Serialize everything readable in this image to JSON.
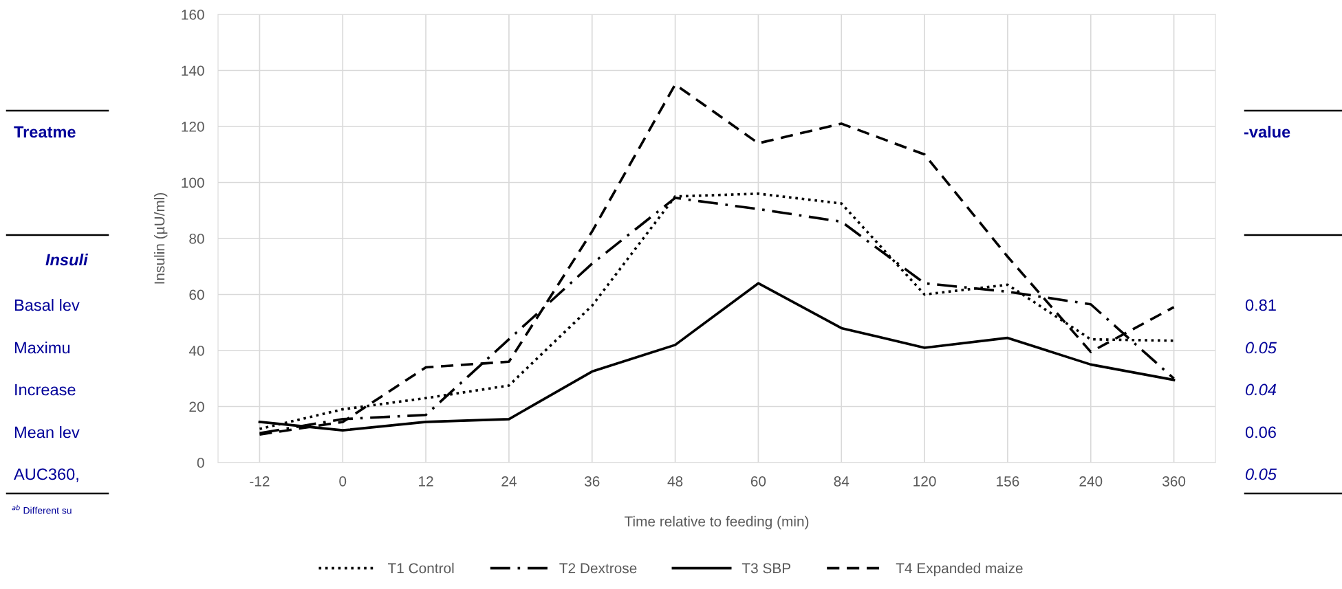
{
  "chart_data": {
    "type": "line",
    "xlabel": "Time relative to feeding (min)",
    "ylabel": "Insulin (µU/ml)",
    "categories": [
      "-12",
      "0",
      "12",
      "24",
      "36",
      "48",
      "60",
      "84",
      "120",
      "156",
      "240",
      "360"
    ],
    "ylim": [
      0,
      160
    ],
    "yticks": [
      0,
      20,
      40,
      60,
      80,
      100,
      120,
      140,
      160
    ],
    "grid": true,
    "legend": "bottom",
    "marker": "none",
    "series": [
      {
        "name": "T1 Control",
        "color": "#000000",
        "line_style": "dotted",
        "values": [
          12,
          19,
          23,
          27.5,
          56,
          95,
          96,
          92.5,
          60,
          63.5,
          44,
          43.5
        ]
      },
      {
        "name": "T2 Dextrose",
        "color": "#000000",
        "line_style": "dashdot",
        "values": [
          10.5,
          15.5,
          17,
          44,
          71,
          94.5,
          90.5,
          86,
          64,
          61,
          56.5,
          30
        ]
      },
      {
        "name": "T3 SBP",
        "color": "#000000",
        "line_style": "solid",
        "values": [
          14.5,
          11.5,
          14.5,
          15.5,
          32.5,
          42,
          64,
          48,
          41,
          44.5,
          35,
          29.5
        ]
      },
      {
        "name": "T4 Expanded maize",
        "color": "#000000",
        "line_style": "dashed",
        "values": [
          10,
          14.5,
          34,
          36,
          82.5,
          135,
          114,
          121,
          110,
          73.5,
          39.5,
          55.5
        ]
      }
    ],
    "annotations": [
      "Treatme",
      "Insuli",
      "Basal lev",
      "Maximu",
      "Increase",
      "Mean lev",
      "AUC360,",
      "$^{ab}$ Different su",
      "-value",
      "0.81",
      "0.05",
      "0.04",
      "0.06",
      "0.05"
    ]
  }
}
